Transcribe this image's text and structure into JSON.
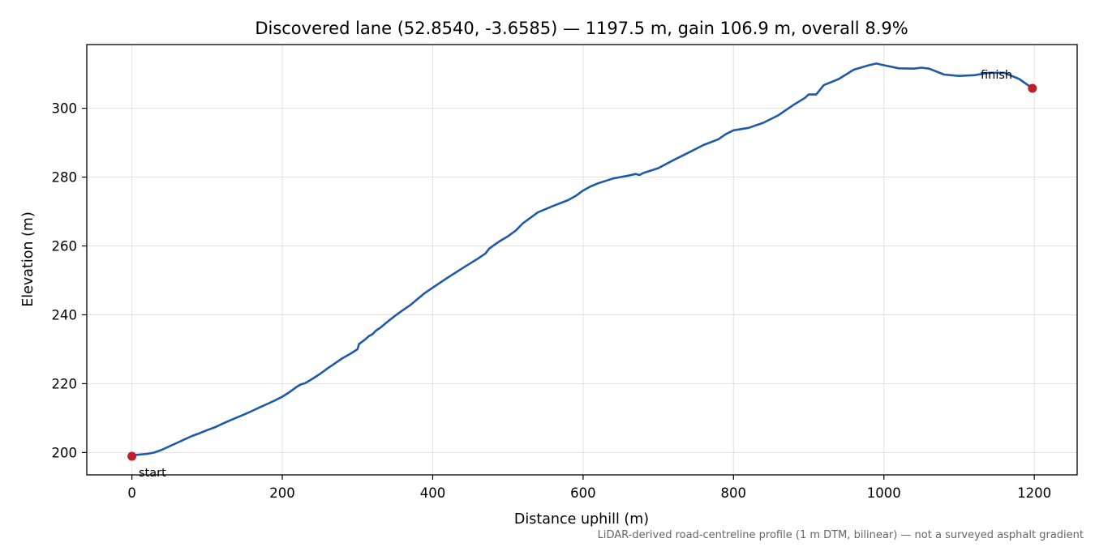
{
  "chart_data": {
    "type": "line",
    "title": "Discovered lane (52.8540, -3.6585) — 1197.5 m, gain 106.9 m, overall 8.9%",
    "xlabel": "Distance uphill (m)",
    "ylabel": "Elevation (m)",
    "xlim": [
      -60,
      1257
    ],
    "ylim": [
      193.5,
      318.5
    ],
    "xticks": [
      0,
      200,
      400,
      600,
      800,
      1000,
      1200
    ],
    "yticks": [
      200,
      220,
      240,
      260,
      280,
      300
    ],
    "grid": true,
    "series_color": "#1f5aaa",
    "marker_color": "#c0202a",
    "series": [
      {
        "x": [
          0,
          10,
          20,
          30,
          40,
          50,
          60,
          70,
          80,
          90,
          100,
          110,
          120,
          130,
          140,
          150,
          160,
          170,
          180,
          190,
          200,
          210,
          220,
          225,
          230,
          240,
          250,
          260,
          270,
          280,
          290,
          300,
          302,
          310,
          315,
          320,
          325,
          330,
          340,
          350,
          360,
          370,
          380,
          390,
          400,
          420,
          440,
          460,
          470,
          475,
          480,
          490,
          500,
          510,
          520,
          540,
          560,
          580,
          590,
          600,
          610,
          620,
          640,
          660,
          670,
          675,
          680,
          700,
          720,
          740,
          760,
          780,
          790,
          800,
          820,
          840,
          860,
          880,
          895,
          900,
          910,
          920,
          940,
          960,
          980,
          990,
          1000,
          1020,
          1040,
          1050,
          1060,
          1080,
          1100,
          1120,
          1140,
          1160,
          1180,
          1197.5
        ],
        "y": [
          199.2,
          199.4,
          199.6,
          200.0,
          200.8,
          201.8,
          202.8,
          203.8,
          204.8,
          205.6,
          206.5,
          207.3,
          208.3,
          209.3,
          210.2,
          211.1,
          212.1,
          213.1,
          214.1,
          215.1,
          216.2,
          217.6,
          219.2,
          219.8,
          220.1,
          221.4,
          222.8,
          224.4,
          225.9,
          227.4,
          228.6,
          230.0,
          231.5,
          232.8,
          233.8,
          234.4,
          235.5,
          236.2,
          238.0,
          239.7,
          241.3,
          242.8,
          244.6,
          246.4,
          247.9,
          250.8,
          253.6,
          256.3,
          257.8,
          259.2,
          260.0,
          261.5,
          262.8,
          264.4,
          266.6,
          269.8,
          271.6,
          273.3,
          274.5,
          276.1,
          277.3,
          278.2,
          279.6,
          280.4,
          280.9,
          280.6,
          281.2,
          282.6,
          284.9,
          287.1,
          289.3,
          291.0,
          292.5,
          293.6,
          294.3,
          295.8,
          298.0,
          301.0,
          303.0,
          304.0,
          304.0,
          306.7,
          308.5,
          311.2,
          312.5,
          313.0,
          312.5,
          311.6,
          311.5,
          311.8,
          311.5,
          309.8,
          309.4,
          309.6,
          310.3,
          310.3,
          308.5,
          305.8
        ]
      }
    ],
    "annotations": [
      {
        "text": "start",
        "x": 0,
        "y": 198.9
      },
      {
        "text": "finish",
        "x": 1197.5,
        "y": 305.8
      }
    ],
    "footnote": "LiDAR-derived road-centreline profile (1 m DTM, bilinear) — not a surveyed asphalt gradient"
  }
}
